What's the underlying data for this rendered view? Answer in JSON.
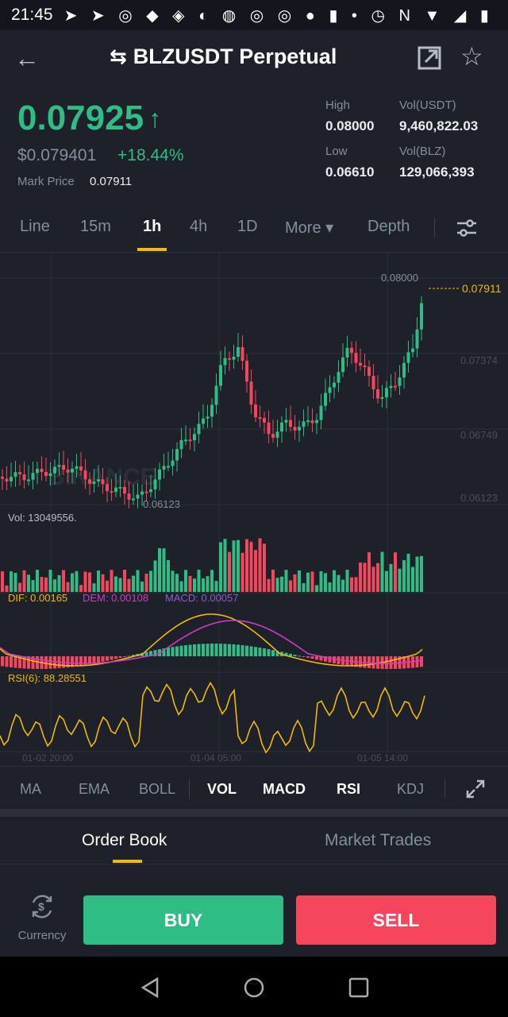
{
  "status_bar": {
    "time": "21:45",
    "icons": "➤ ➤ ◎ ◆ ◈ ◐ ◍ ◎ ◎ ● ▮ • ◷ N ▼ ◢ ▮"
  },
  "header": {
    "title": "BLZUSDT Perpetual",
    "swap_icon": "⇆",
    "back_icon": "←",
    "star_icon": "☆"
  },
  "ticker": {
    "last_price": "0.07925",
    "last_price_arrow": "↑",
    "usd_price": "$0.079401",
    "change_pct": "+18.44%",
    "mark_price_label": "Mark Price",
    "mark_price": "0.07911",
    "high_label": "High",
    "high": "0.08000",
    "low_label": "Low",
    "low": "0.06610",
    "vol_usdt_label": "Vol(USDT)",
    "vol_usdt": "9,460,822.03",
    "vol_blz_label": "Vol(BLZ)",
    "vol_blz": "129,066,393"
  },
  "interval_tabs": [
    "Line",
    "15m",
    "1h",
    "4h",
    "1D",
    "More ▾",
    "Depth"
  ],
  "active_interval": "1h",
  "chart": {
    "watermark": "BINANCE",
    "high_marker": "0.08000",
    "current_marker": "0.07911",
    "low_marker": "0.06123",
    "y_ticks": [
      "0.07374",
      "0.06749",
      "0.06123"
    ],
    "vol_label": "Vol: 13049556.",
    "macd_dif": "DIF: 0.00165",
    "macd_dem": "DEM: 0.00108",
    "macd_macd": "MACD: 0.00057",
    "rsi_label": "RSI(6): 88.28551",
    "x_ticks": [
      "01-02 20:00",
      "01-04 05:00",
      "01-05 14:00"
    ]
  },
  "indicators": [
    "MA",
    "EMA",
    "BOLL",
    "VOL",
    "MACD",
    "RSI",
    "KDJ"
  ],
  "active_indicators": [
    "VOL",
    "MACD",
    "RSI"
  ],
  "book_tabs": {
    "order_book": "Order Book",
    "market_trades": "Market Trades"
  },
  "bottom": {
    "currency_label": "Currency",
    "buy": "BUY",
    "sell": "SELL"
  },
  "colors": {
    "up": "#2ebd85",
    "down": "#f6465d",
    "accent": "#f0b90b",
    "bg": "#1e2129"
  }
}
